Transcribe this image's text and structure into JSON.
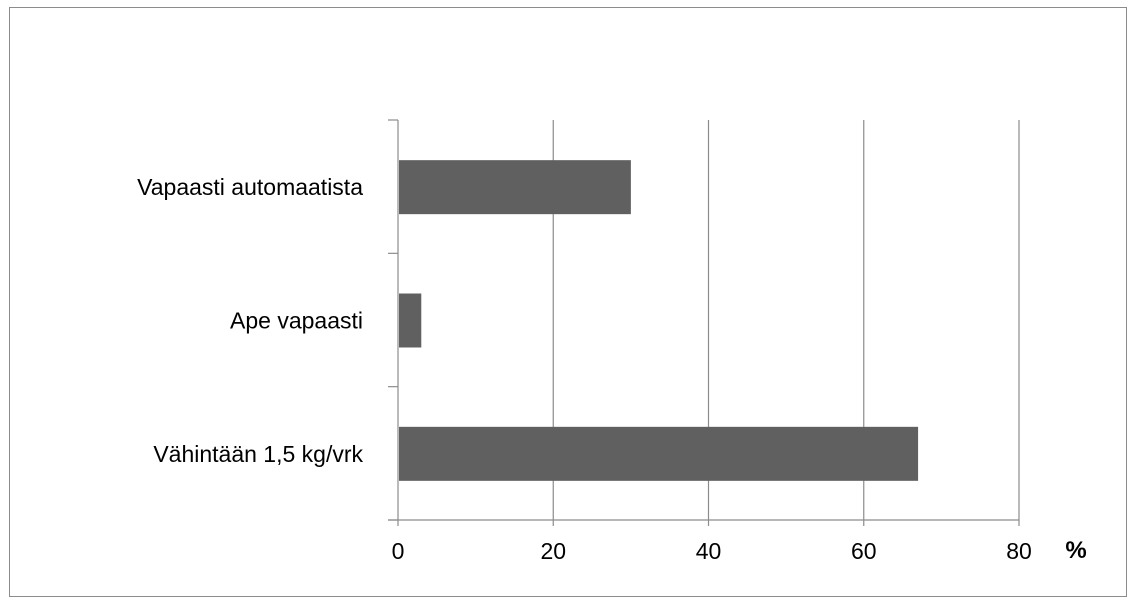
{
  "chart_data": {
    "type": "bar",
    "orientation": "horizontal",
    "categories": [
      "Vapaasti automaatista",
      "Ape vapaasti",
      "Vähintään 1,5 kg/vrk"
    ],
    "values": [
      30,
      3,
      67
    ],
    "xlim": [
      0,
      80
    ],
    "ticks": [
      0,
      20,
      40,
      60,
      80
    ],
    "tick_labels": [
      "0",
      "20",
      "40",
      "60",
      "80"
    ],
    "unit_label": "%",
    "grid": "vertical",
    "bar_color": "#606060",
    "title": "",
    "xlabel": "",
    "ylabel": ""
  }
}
